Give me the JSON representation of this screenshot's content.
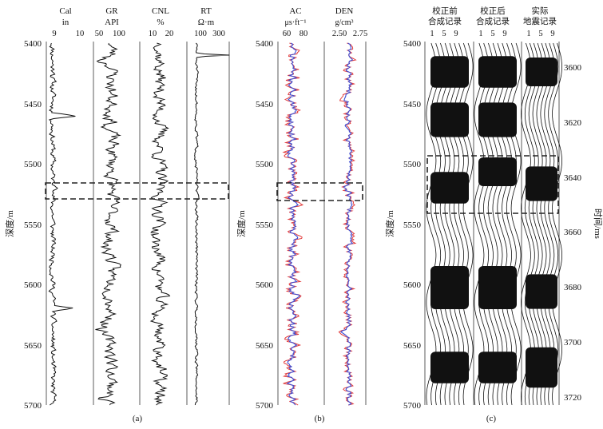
{
  "depth_ticks": [
    "5400",
    "5450",
    "5500",
    "5550",
    "5600",
    "5650",
    "5700"
  ],
  "time_ticks": [
    "3600",
    "3620",
    "3640",
    "3660",
    "3680",
    "3700",
    "3720"
  ],
  "depth_label": "深度/m",
  "time_label": "时间/ms",
  "panel_labels": [
    "(a)",
    "(b)",
    "(c)"
  ],
  "tracks_a": [
    {
      "name": "Cal",
      "unit": "in",
      "scale": [
        "9",
        "10"
      ]
    },
    {
      "name": "GR",
      "unit": "API",
      "scale": [
        "50",
        "100"
      ]
    },
    {
      "name": "CNL",
      "unit": "%",
      "scale": [
        "10",
        "20"
      ]
    },
    {
      "name": "RT",
      "unit": "Ω·m",
      "scale": [
        "100",
        "300"
      ]
    }
  ],
  "tracks_b": [
    {
      "name": "AC",
      "unit": "μs·ft⁻¹",
      "scale": [
        "60",
        "80"
      ]
    },
    {
      "name": "DEN",
      "unit": "g/cm³",
      "scale": [
        "2.50",
        "2.75"
      ]
    }
  ],
  "tracks_c": [
    {
      "line1": "校正前",
      "line2": "合成记录",
      "scale": [
        "1",
        "5",
        "9"
      ]
    },
    {
      "line1": "校正后",
      "line2": "合成记录",
      "scale": [
        "1",
        "5",
        "9"
      ]
    },
    {
      "line1": "实际",
      "line2": "地震记录",
      "scale": [
        "1",
        "5",
        "9"
      ]
    }
  ],
  "colors": {
    "curve": "#111111",
    "red_curve": "#e23b3b",
    "blue_curve": "#3b4fd6"
  }
}
